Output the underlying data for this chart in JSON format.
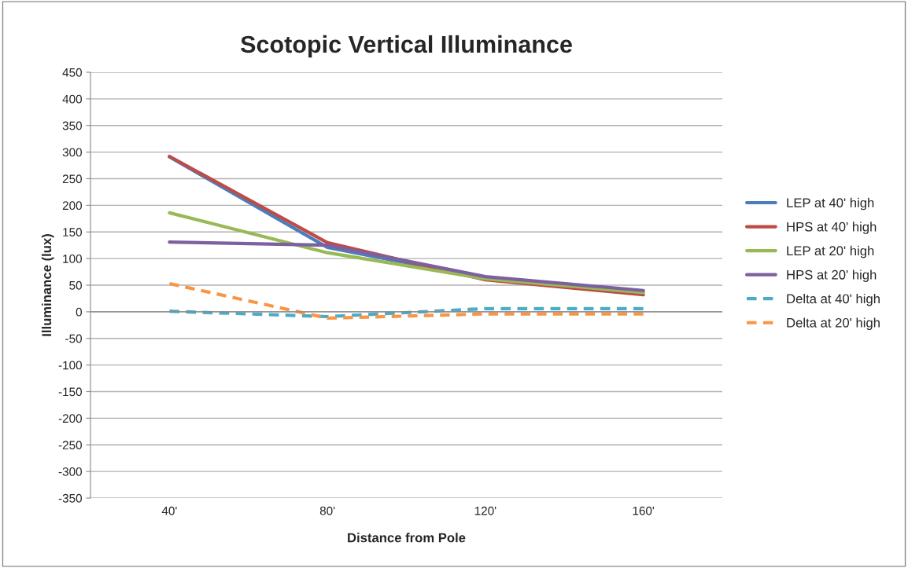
{
  "chart_data": {
    "type": "line",
    "title": "Scotopic Vertical Illuminance",
    "xlabel": "Distance from Pole",
    "ylabel": "Illuminance (lux)",
    "categories": [
      "40'",
      "80'",
      "120'",
      "160'"
    ],
    "series": [
      {
        "name": "LEP at 40' high",
        "color": "#4a7ebb",
        "values": [
          291,
          121,
          63,
          37
        ]
      },
      {
        "name": "HPS at 40' high",
        "color": "#be4b48",
        "values": [
          292,
          130,
          60,
          32
        ]
      },
      {
        "name": "LEP at 20' high",
        "color": "#98b954",
        "values": [
          186,
          111,
          62,
          36
        ]
      },
      {
        "name": "HPS at 20' high",
        "color": "#7d60a0",
        "values": [
          131,
          125,
          66,
          40
        ]
      },
      {
        "name": "Delta at 40' high",
        "color": "#4bacc6",
        "line_style": "dashed",
        "values": [
          1,
          -9,
          6,
          6
        ]
      },
      {
        "name": "Delta at 20' high",
        "color": "#f79646",
        "line_style": "dashed",
        "values": [
          53,
          -12,
          -4,
          -4
        ]
      }
    ],
    "ylim": [
      -350,
      450
    ],
    "yticks": [
      -350,
      -300,
      -250,
      -200,
      -150,
      -100,
      -50,
      0,
      50,
      100,
      150,
      200,
      250,
      300,
      350,
      400,
      450
    ],
    "grid": "y",
    "legend": "right",
    "line_style": "solid"
  }
}
